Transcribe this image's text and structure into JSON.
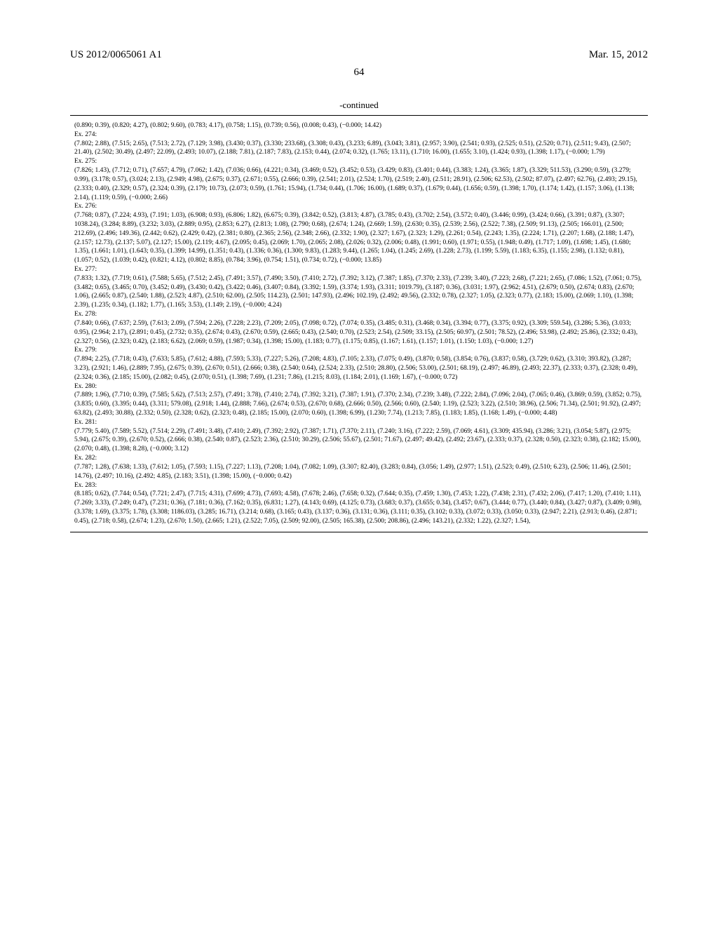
{
  "header": {
    "pub_number": "US 2012/0065061 A1",
    "pub_date": "Mar. 15, 2012",
    "page_number": "64"
  },
  "continued_label": "-continued",
  "data_block": "(0.890; 0.39), (0.820; 4.27), (0.802; 9.60), (0.783; 4.17), (0.758; 1.15), (0.739; 0.56), (0.008; 0.43), (−0.000; 14.42)\nEx. 274:\n(7.802; 2.88), (7.515; 2.65), (7.513; 2.72), (7.129; 3.98), (3.430; 0.37), (3.330; 233.68), (3.308; 0.43), (3.233; 6.89), (3.043; 3.81), (2.957; 3.90), (2.541; 0.93), (2.525; 0.51), (2.520; 0.71), (2.511; 9.43), (2.507; 21.40), (2.502; 30.49), (2.497; 22.09), (2.493; 10.07), (2.188; 7.81), (2.187; 7.83), (2.153; 0.44), (2.074; 0.32), (1.765; 13.11), (1.710; 16.00), (1.655; 3.10), (1.424; 0.93), (1.398; 1.17), (−0.000; 1.79)\nEx. 275:\n(7.826; 1.43), (7.712; 0.71), (7.657; 4.79), (7.062; 1.42), (7.036; 0.66), (4.221; 0.34), (3.469; 0.52), (3.452; 0.53), (3.429; 0.83), (3.401; 0.44), (3.383; 1.24), (3.365; 1.87), (3.329; 511.53), (3.290; 0.59), (3.279; 0.99), (3.178; 0.57), (3.024; 2.13), (2.949; 4.98), (2.675; 0.37), (2.671; 0.55), (2.666; 0.39), (2.541; 2.01), (2.524; 1.70), (2.519; 2.40), (2.511; 28.91), (2.506; 62.53), (2.502; 87.07), (2.497; 62.76), (2.493; 29.15), (2.333; 0.40), (2.329; 0.57), (2.324; 0.39), (2.179; 10.73), (2.073; 0.59), (1.761; 15.94), (1.734; 0.44), (1.706; 16.00), (1.689; 0.37), (1.679; 0.44), (1.656; 0.59), (1.398; 1.70), (1.174; 1.42), (1.157; 3.06), (1.138; 2.14), (1.119; 0.59), (−0.000; 2.66)\nEx. 276:\n(7.768; 0.87), (7.224; 4.93), (7.191; 1.03), (6.908; 0.93), (6.806; 1.82), (6.675; 0.39), (3.842; 0.52), (3.813; 4.87), (3.785; 0.43), (3.702; 2.54), (3.572; 0.40), (3.446; 0.99), (3.424; 0.66), (3.391; 0.87), (3.307; 1038.24), (3.284; 8.89), (3.232; 3.03), (2.889; 0.95), (2.853; 6.27), (2.813; 1.08), (2.790; 0.68), (2.674; 1.24), (2.669; 1.59), (2.630; 0.35), (2.539; 2.56), (2.522; 7.38), (2.509; 91.13), (2.505; 166.01), (2.500; 212.69), (2.496; 149.36), (2.442; 0.62), (2.429; 0.42), (2.381; 0.80), (2.365; 2.56), (2.348; 2.66), (2.332; 1.90), (2.327; 1.67), (2.323; 1.29), (2.261; 0.54), (2.243; 1.35), (2.224; 1.71), (2.207; 1.68), (2.188; 1.47), (2.157; 12.73), (2.137; 5.07), (2.127; 15.00), (2.119; 4.67), (2.095; 0.45), (2.069; 1.70), (2.065; 2.08), (2.026; 0.32), (2.006; 0.48), (1.991; 0.60), (1.971; 0.55), (1.948; 0.49), (1.717; 1.09), (1.698; 1.45), (1.680; 1.35), (1.661; 1.01), (1.643; 0.35), (1.399; 14.99), (1.351; 0.43), (1.336; 0.36), (1.300; 9.83), (1.283; 9.44), (1.265; 1.04), (1.245; 2.69), (1.228; 2.73), (1.199; 5.59), (1.183; 6.35), (1.155; 2.98), (1.132; 0.81), (1.057; 0.52), (1.039; 0.42), (0.821; 4.12), (0.802; 8.85), (0.784; 3.96), (0.754; 1.51), (0.734; 0.72), (−0.000; 13.85)\nEx. 277:\n(7.833; 1.32), (7.719; 0.61), (7.588; 5.65), (7.512; 2.45), (7.491; 3.57), (7.490; 3.50), (7.410; 2.72), (7.392; 3.12), (7.387; 1.85), (7.370; 2.33), (7.239; 3.40), (7.223; 2.68), (7.221; 2.65), (7.086; 1.52), (7.061; 0.75), (3.482; 0.65), (3.465; 0.70), (3.452; 0.49), (3.430; 0.42), (3.422; 0.46), (3.407; 0.84), (3.392; 1.59), (3.374; 1.93), (3.311; 1019.79), (3.187; 0.36), (3.031; 1.97), (2.962; 4.51), (2.679; 0.50), (2.674; 0.83), (2.670; 1.06), (2.665; 0.87), (2.540; 1.88), (2.523; 4.87), (2.510; 62.00), (2.505; 114.23), (2.501; 147.93), (2.496; 102.19), (2.492; 49.56), (2.332; 0.78), (2.327; 1.05), (2.323; 0.77), (2.183; 15.00), (2.069; 1.10), (1.398; 2.39), (1.235; 0.34), (1.182; 1.77), (1.165; 3.53), (1.149; 2.19), (−0.000; 4.24)\nEx. 278:\n(7.840; 0.66), (7.637; 2.59), (7.613; 2.09), (7.594; 2.26), (7.228; 2.23), (7.209; 2.05), (7.098; 0.72), (7.074; 0.35), (3.485; 0.31), (3.468; 0.34), (3.394; 0.77), (3.375; 0.92), (3.309; 559.54), (3.286; 5.36), (3.033; 0.95), (2.964; 2.17), (2.891; 0.45), (2.732; 0.35), (2.674; 0.43), (2.670; 0.59), (2.665; 0.43), (2.540; 0.70), (2.523; 2.54), (2.509; 33.15), (2.505; 60.97), (2.501; 78.52), (2.496; 53.98), (2.492; 25.86), (2.332; 0.43), (2.327; 0.56), (2.323; 0.42), (2.183; 6.62), (2.069; 0.59), (1.987; 0.34), (1.398; 15.00), (1.183; 0.77), (1.175; 0.85), (1.167; 1.61), (1.157; 1.01), (1.150; 1.03), (−0.000; 1.27)\nEx. 279:\n(7.894; 2.25), (7.718; 0.43), (7.633; 5.85), (7.612; 4.88), (7.593; 5.33), (7.227; 5.26), (7.208; 4.83), (7.105; 2.33), (7.075; 0.49), (3.870; 0.58), (3.854; 0.76), (3.837; 0.58), (3.729; 0.62), (3.310; 393.82), (3.287; 3.23), (2.921; 1.46), (2.889; 7.95), (2.675; 0.39), (2.670; 0.51), (2.666; 0.38), (2.540; 0.64), (2.524; 2.33), (2.510; 28.80), (2.506; 53.00), (2.501; 68.19), (2.497; 46.89), (2.493; 22.37), (2.333; 0.37), (2.328; 0.49), (2.324; 0.36), (2.185; 15.00), (2.082; 0.45), (2.070; 0.51), (1.398; 7.69), (1.231; 7.86), (1.215; 8.03), (1.184; 2.01), (1.169; 1.67), (−0.000; 0.72)\nEx. 280:\n(7.889; 1.96), (7.710; 0.39), (7.585; 5.62), (7.513; 2.57), (7.491; 3.78), (7.410; 2.74), (7.392; 3.21), (7.387; 1.91), (7.370; 2.34), (7.239; 3.48), (7.222; 2.84), (7.096; 2.04), (7.065; 0.46), (3.869; 0.59), (3.852; 0.75), (3.835; 0.60), (3.395; 0.44), (3.311; 579.08), (2.918; 1.44), (2.888; 7.66), (2.674; 0.53), (2.670; 0.68), (2.666; 0.50), (2.566; 0.60), (2.540; 1.19), (2.523; 3.22), (2.510; 38.96), (2.506; 71.34), (2.501; 91.92), (2.497; 63.82), (2.493; 30.88), (2.332; 0.50), (2.328; 0.62), (2.323; 0.48), (2.185; 15.00), (2.070; 0.60), (1.398; 6.99), (1.230; 7.74), (1.213; 7.85), (1.183; 1.85), (1.168; 1.49), (−0.000; 4.48)\nEx. 281:\n(7.779; 5.40), (7.589; 5.52), (7.514; 2.29), (7.491; 3.48), (7.410; 2.49), (7.392; 2.92), (7.387; 1.71), (7.370; 2.11), (7.240; 3.16), (7.222; 2.59), (7.069; 4.61), (3.309; 435.94), (3.286; 3.21), (3.054; 5.87), (2.975; 5.94), (2.675; 0.39), (2.670; 0.52), (2.666; 0.38), (2.540; 0.87), (2.523; 2.36), (2.510; 30.29), (2.506; 55.67), (2.501; 71.67), (2.497; 49.42), (2.492; 23.67), (2.333; 0.37), (2.328; 0.50), (2.323; 0.38), (2.182; 15.00), (2.070; 0.48), (1.398; 8.28), (−0.000; 3.12)\nEx. 282:\n(7.787; 1.28), (7.638; 1.33), (7.612; 1.05), (7.593; 1.15), (7.227; 1.13), (7.208; 1.04), (7.082; 1.09), (3.307; 82.40), (3.283; 0.84), (3.056; 1.49), (2.977; 1.51), (2.523; 0.49), (2.510; 6.23), (2.506; 11.46), (2.501; 14.76), (2.497; 10.16), (2.492; 4.85), (2.183; 3.51), (1.398; 15.00), (−0.000; 0.42)\nEx. 283:\n(8.185; 0.62), (7.744; 0.54), (7.721; 2.47), (7.715; 4.31), (7.699; 4.73), (7.693; 4.58), (7.678; 2.46), (7.658; 0.32), (7.644; 0.35), (7.459; 1.30), (7.453; 1.22), (7.438; 2.31), (7.432; 2.06), (7.417; 1.20), (7.410; 1.11), (7.269; 3.33), (7.249; 0.47), (7.231; 0.36), (7.181; 0.36), (7.162; 0.35), (6.831; 1.27), (4.143; 0.69), (4.125; 0.73), (3.683; 0.37), (3.655; 0.34), (3.457; 0.67), (3.444; 0.77), (3.440; 0.84), (3.427; 0.87), (3.409; 0.98), (3.378; 1.69), (3.375; 1.78), (3.308; 1186.03), (3.285; 16.71), (3.214; 0.68), (3.165; 0.43), (3.137; 0.36), (3.131; 0.36), (3.111; 0.35), (3.102; 0.33), (3.072; 0.33), (3.050; 0.33), (2.947; 2.21), (2.913; 0.46), (2.871; 0.45), (2.718; 0.58), (2.674; 1.23), (2.670; 1.50), (2.665; 1.21), (2.522; 7.05), (2.509; 92.00), (2.505; 165.38), (2.500; 208.86), (2.496; 143.21), (2.332; 1.22), (2.327; 1.54),"
}
